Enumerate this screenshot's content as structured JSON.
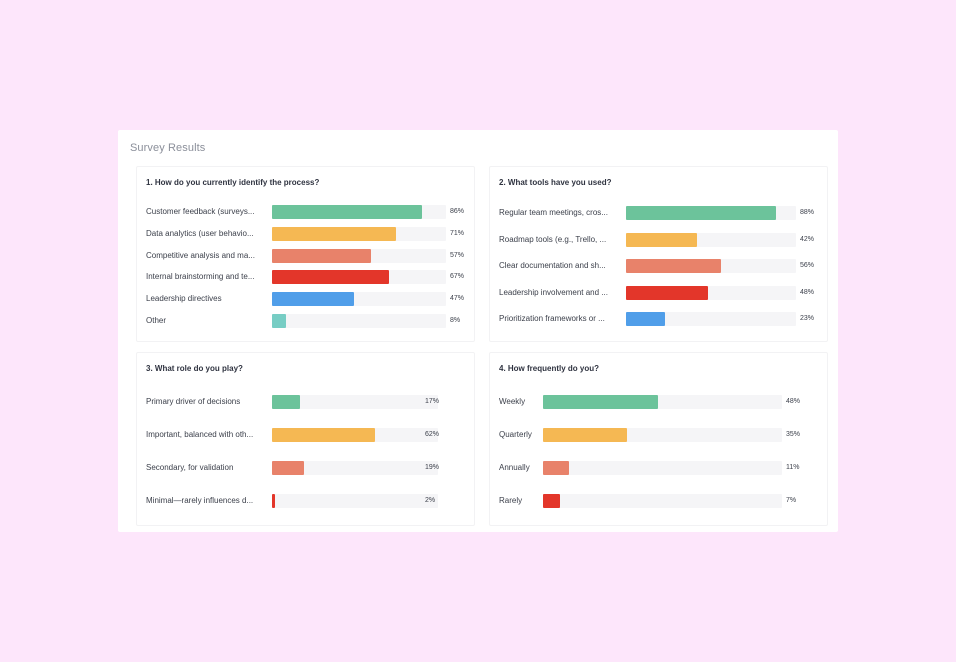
{
  "page": {
    "title": "Survey Results"
  },
  "colors": {
    "green": "#6cc39b",
    "yellow": "#f5b853",
    "salmon": "#e8826a",
    "red": "#e3362a",
    "blue": "#509ee9",
    "teal": "#77cdc4"
  },
  "chart_data": [
    {
      "type": "bar",
      "orientation": "horizontal",
      "title": "1. How do you currently identify the process?",
      "categories": [
        "Customer feedback (surveys...",
        "Data analytics (user behavio...",
        "Competitive analysis and ma...",
        "Internal brainstorming and te...",
        "Leadership directives",
        "Other"
      ],
      "values": [
        86,
        71,
        57,
        67,
        47,
        8
      ],
      "labels": [
        "86%",
        "71%",
        "57%",
        "67%",
        "47%",
        "8%"
      ],
      "colors": [
        "#6cc39b",
        "#f5b853",
        "#e8826a",
        "#e3362a",
        "#509ee9",
        "#77cdc4"
      ],
      "xlim": [
        0,
        100
      ],
      "unit": "%"
    },
    {
      "type": "bar",
      "orientation": "horizontal",
      "title": "2. What tools have you used?",
      "categories": [
        "Regular team meetings, cros...",
        "Roadmap tools (e.g., Trello, ...",
        "Clear documentation and sh...",
        "Leadership involvement and ...",
        "Prioritization frameworks or ..."
      ],
      "values": [
        88,
        42,
        56,
        48,
        23
      ],
      "labels": [
        "88%",
        "42%",
        "56%",
        "48%",
        "23%"
      ],
      "colors": [
        "#6cc39b",
        "#f5b853",
        "#e8826a",
        "#e3362a",
        "#509ee9"
      ],
      "xlim": [
        0,
        100
      ],
      "unit": "%"
    },
    {
      "type": "bar",
      "orientation": "horizontal",
      "title": "3. What role do you play?",
      "categories": [
        "Primary driver of decisions",
        "Important, balanced with oth...",
        "Secondary, for validation",
        "Minimal—rarely influences d..."
      ],
      "values": [
        17,
        62,
        19,
        2
      ],
      "labels": [
        "17%",
        "62%",
        "19%",
        "2%"
      ],
      "colors": [
        "#6cc39b",
        "#f5b853",
        "#e8826a",
        "#e3362a"
      ],
      "xlim": [
        0,
        100
      ],
      "unit": "%"
    },
    {
      "type": "bar",
      "orientation": "horizontal",
      "title": "4. How frequently do you?",
      "categories": [
        "Weekly",
        "Quarterly",
        "Annually",
        "Rarely"
      ],
      "values": [
        48,
        35,
        11,
        7
      ],
      "labels": [
        "48%",
        "35%",
        "11%",
        "7%"
      ],
      "colors": [
        "#6cc39b",
        "#f5b853",
        "#e8826a",
        "#e3362a"
      ],
      "xlim": [
        0,
        100
      ],
      "unit": "%"
    }
  ]
}
